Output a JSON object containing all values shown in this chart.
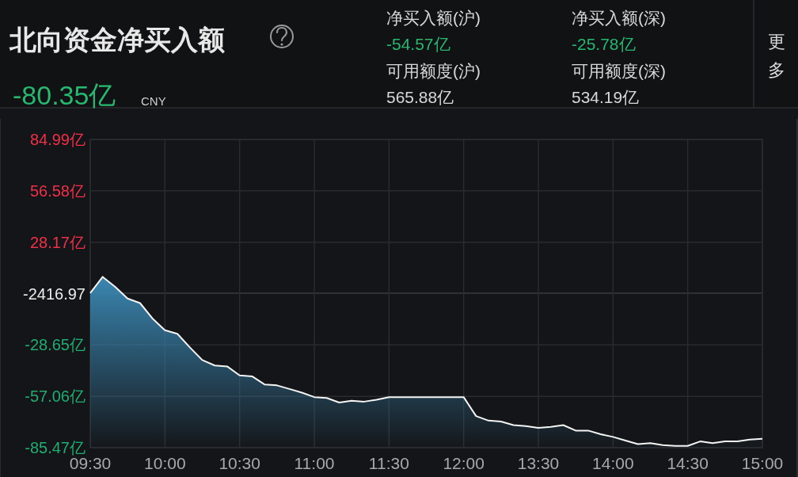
{
  "chart_data": {
    "type": "line",
    "title": "北向资金净买入额",
    "annotations": [
      "-80.35亿",
      "CNY",
      "净买入额(沪)",
      "-54.57亿",
      "净买入额(深)",
      "-25.78亿",
      "可用额度(沪)",
      "565.88亿",
      "可用额度(深)",
      "534.19亿",
      "更多",
      "-2416.97"
    ],
    "categories": [
      "09:30",
      null,
      null,
      null,
      null,
      null,
      "10:00",
      null,
      null,
      null,
      null,
      null,
      "10:30",
      null,
      null,
      null,
      null,
      null,
      "11:00",
      null,
      null,
      null,
      null,
      null,
      "11:30",
      null,
      null,
      null,
      null,
      null,
      "12:00",
      null,
      null,
      null,
      null,
      null,
      "13:30",
      null,
      null,
      null,
      null,
      null,
      "14:00",
      null,
      null,
      null,
      null,
      null,
      "14:30",
      null,
      null,
      null,
      null,
      null,
      "15:00"
    ],
    "series": [
      {
        "color": "#f4f4f4",
        "values": [
          0,
          9,
          3.5,
          -3,
          -5.5,
          -14,
          -20.5,
          -22.5,
          -30,
          -37,
          -40,
          -40.5,
          -45.5,
          -46,
          -50.5,
          -51,
          -53,
          -55,
          -57.5,
          -58,
          -60.5,
          -59.5,
          -60,
          -59,
          -57.5,
          -57.5,
          -57.5,
          -57.5,
          -57.5,
          -57.5,
          -57.5,
          -68,
          -70.5,
          -71,
          -73,
          -73.5,
          -74.5,
          -74,
          -73,
          -76,
          -76,
          -78,
          -79.5,
          -81.5,
          -83.5,
          -83,
          -84,
          -84.5,
          -84.5,
          -82,
          -83,
          -82,
          -82,
          -81,
          -80.5
        ]
      }
    ],
    "ylim": [
      -85.47,
      84.99
    ],
    "yticks": [
      {
        "value": 84.99,
        "label": "84.99亿"
      },
      {
        "value": 56.58,
        "label": "56.58亿"
      },
      {
        "value": 28.17,
        "label": "28.17亿"
      },
      {
        "value": 0,
        "label": null
      },
      {
        "value": -28.65,
        "label": "-28.65亿"
      },
      {
        "value": -57.06,
        "label": "-57.06亿"
      },
      {
        "value": -85.47,
        "label": "-85.47亿"
      }
    ],
    "grid": true
  }
}
